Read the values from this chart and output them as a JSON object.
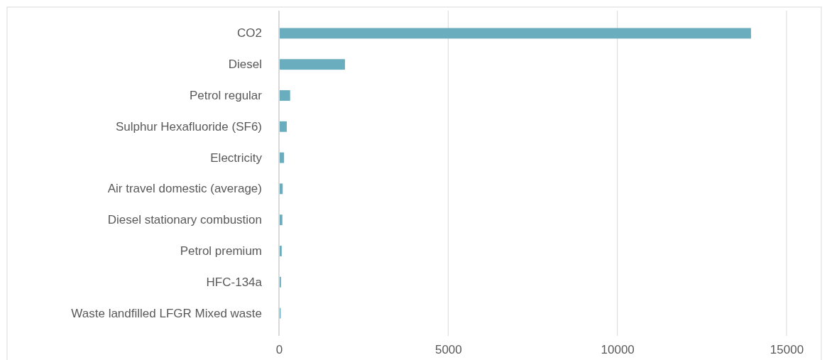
{
  "chart_data": {
    "type": "bar",
    "orientation": "horizontal",
    "categories": [
      "CO2",
      "Diesel",
      "Petrol regular",
      "Sulphur Hexafluoride (SF6)",
      "Electricity",
      "Air travel domestic (average)",
      "Diesel stationary combustion",
      "Petrol premium",
      "HFC-134a",
      "Waste landfilled LFGR Mixed waste"
    ],
    "values": [
      13950,
      1950,
      330,
      230,
      150,
      110,
      100,
      80,
      60,
      50
    ],
    "color": "#6aadbf",
    "xlim": [
      0,
      15000
    ],
    "xticks": [
      0,
      5000,
      10000,
      15000
    ],
    "grid": "x"
  }
}
